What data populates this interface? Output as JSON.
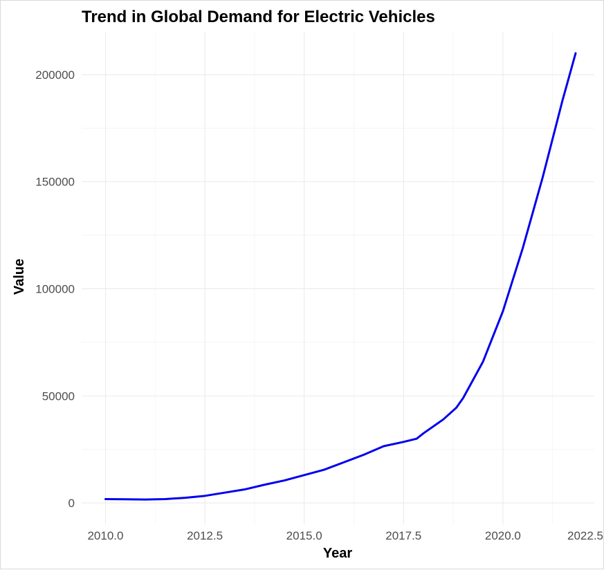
{
  "chart_data": {
    "type": "line",
    "title": "Trend in Global Demand for Electric Vehicles",
    "xlabel": "Year",
    "ylabel": "Value",
    "xlim": [
      2009.4,
      2022.3
    ],
    "ylim": [
      -10000,
      220000
    ],
    "x_ticks": [
      {
        "value": 2010.0,
        "label": "2010.0"
      },
      {
        "value": 2012.5,
        "label": "2012.5"
      },
      {
        "value": 2015.0,
        "label": "2015.0"
      },
      {
        "value": 2017.5,
        "label": "2017.5"
      },
      {
        "value": 2020.0,
        "label": "2020.0"
      },
      {
        "value": 2022.5,
        "label": "2022.5"
      }
    ],
    "y_ticks": [
      {
        "value": 0,
        "label": "0"
      },
      {
        "value": 50000,
        "label": "50000"
      },
      {
        "value": 100000,
        "label": "100000"
      },
      {
        "value": 150000,
        "label": "150000"
      },
      {
        "value": 200000,
        "label": "200000"
      }
    ],
    "grid": true,
    "legend": "none",
    "series": [
      {
        "color": "#0000ee",
        "x": [
          2010.0,
          2010.5,
          2011.0,
          2011.5,
          2012.0,
          2012.5,
          2013.0,
          2013.5,
          2014.0,
          2014.5,
          2015.0,
          2015.5,
          2016.0,
          2016.5,
          2017.0,
          2017.5,
          2017.83,
          2018.0,
          2018.5,
          2018.83,
          2019.0,
          2019.5,
          2020.0,
          2020.5,
          2021.0,
          2021.5,
          2021.83
        ],
        "y": [
          1800,
          1700,
          1600,
          1800,
          2400,
          3300,
          4800,
          6300,
          8500,
          10500,
          13000,
          15500,
          19000,
          22500,
          26500,
          28500,
          30000,
          32500,
          39000,
          44500,
          49000,
          66000,
          89500,
          119000,
          152000,
          188000,
          210000
        ]
      }
    ]
  }
}
